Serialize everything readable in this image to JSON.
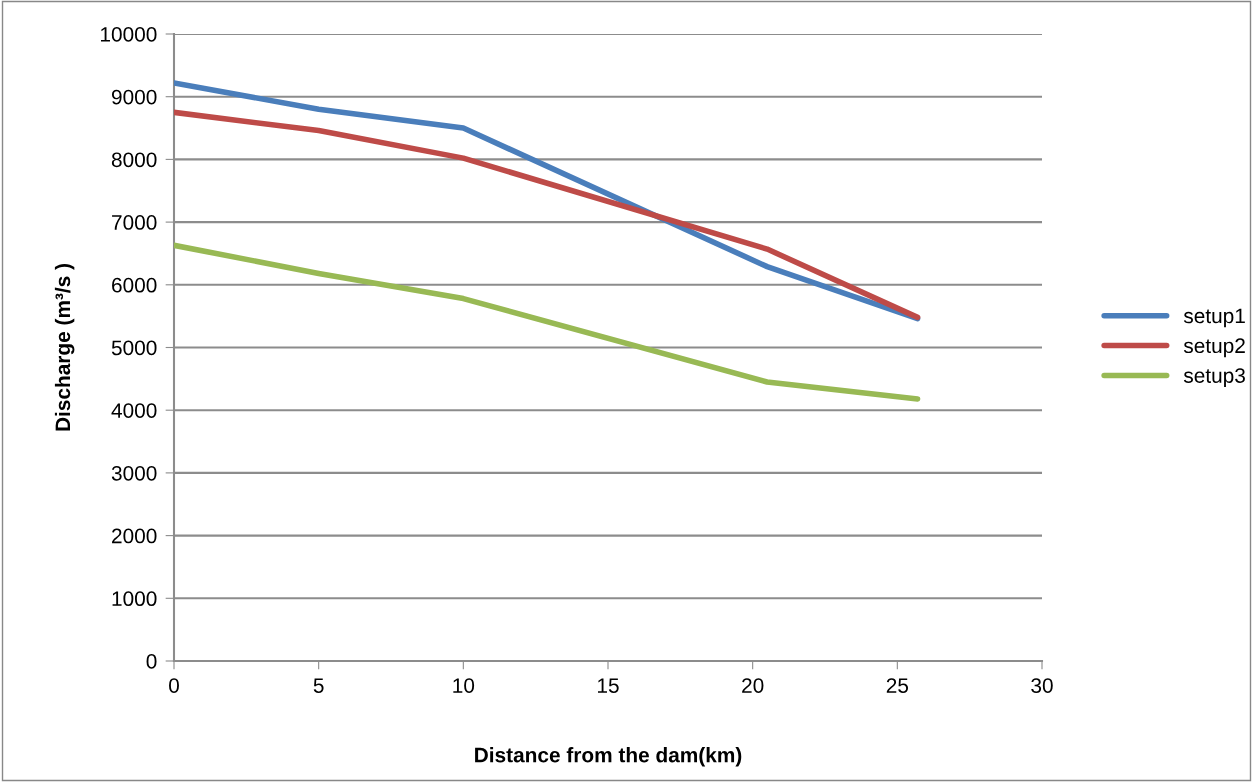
{
  "chart_data": {
    "type": "line",
    "xlabel": "Distance from the dam(km)",
    "ylabel": "Discharge (m³/s )",
    "x": [
      0,
      5,
      10,
      20.5,
      25.7
    ],
    "series": [
      {
        "name": "setup1",
        "color": "#4a7ebb",
        "values": [
          9220,
          8800,
          8500,
          6290,
          5460
        ]
      },
      {
        "name": "setup2",
        "color": "#be4b48",
        "values": [
          8750,
          8460,
          8020,
          6570,
          5480
        ]
      },
      {
        "name": "setup3",
        "color": "#98b954",
        "values": [
          6630,
          6180,
          5780,
          4450,
          4180
        ]
      }
    ],
    "xlim": [
      0,
      30
    ],
    "xticks": [
      0,
      5,
      10,
      15,
      20,
      25,
      30
    ],
    "ylim": [
      0,
      10000
    ],
    "yticks": [
      0,
      1000,
      2000,
      3000,
      4000,
      5000,
      6000,
      7000,
      8000,
      9000,
      10000
    ],
    "grid": "y",
    "legend": "right",
    "marker": "none",
    "line_style": "solid"
  }
}
